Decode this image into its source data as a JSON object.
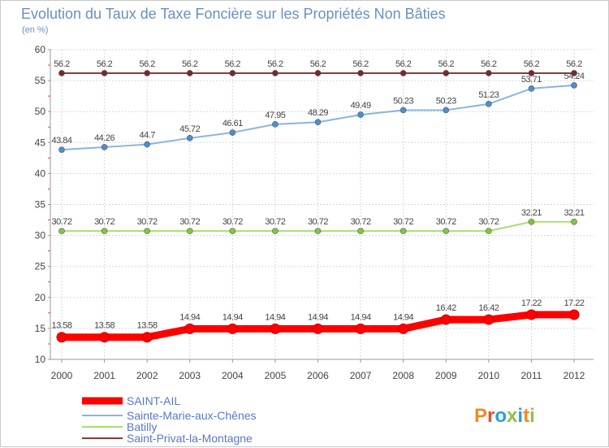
{
  "chart_data": {
    "type": "line",
    "title": "Evolution du Taux de Taxe Foncière sur les Propriétés Non Bâties",
    "subtitle": "(en %)",
    "x": [
      "2000",
      "2001",
      "2002",
      "2003",
      "2004",
      "2005",
      "2006",
      "2007",
      "2008",
      "2009",
      "2010",
      "2011",
      "2012"
    ],
    "ylim": [
      10,
      60
    ],
    "yticks": [
      "10",
      "15",
      "20",
      "25",
      "30",
      "35",
      "40",
      "45",
      "50",
      "55",
      "60"
    ],
    "grid": true,
    "legend_position": "bottom-left",
    "series": [
      {
        "name": "SAINT-AIL",
        "color": "#ff0000",
        "marker_color": "#ff0000",
        "values": [
          13.58,
          13.58,
          13.58,
          14.94,
          14.94,
          14.94,
          14.94,
          14.94,
          14.94,
          16.42,
          16.42,
          17.22,
          17.22
        ],
        "labels": [
          "13.58",
          "13.58",
          "13.58",
          "14.94",
          "14.94",
          "14.94",
          "14.94",
          "14.94",
          "14.94",
          "16.42",
          "16.42",
          "17.22",
          "17.22"
        ]
      },
      {
        "name": "Sainte-Marie-aux-Chênes",
        "color": "#8bb4e0",
        "marker_color": "#4a90d0",
        "values": [
          43.84,
          44.26,
          44.7,
          45.72,
          46.61,
          47.95,
          48.29,
          49.49,
          50.23,
          50.23,
          51.23,
          53.71,
          54.24
        ],
        "labels": [
          "43.84",
          "44.26",
          "44.7",
          "45.72",
          "46.61",
          "47.95",
          "48.29",
          "49.49",
          "50.23",
          "50.23",
          "51.23",
          "53.71",
          "54.24"
        ]
      },
      {
        "name": "Batilly",
        "color": "#a8e070",
        "marker_color": "#80c840",
        "values": [
          30.72,
          30.72,
          30.72,
          30.72,
          30.72,
          30.72,
          30.72,
          30.72,
          30.72,
          30.72,
          30.72,
          32.21,
          32.21
        ],
        "labels": [
          "30.72",
          "30.72",
          "30.72",
          "30.72",
          "30.72",
          "30.72",
          "30.72",
          "30.72",
          "30.72",
          "30.72",
          "30.72",
          "32.21",
          "32.21"
        ]
      },
      {
        "name": "Saint-Privat-la-Montagne",
        "color": "#8b3a3a",
        "marker_color": "#7a2828",
        "values": [
          56.2,
          56.2,
          56.2,
          56.2,
          56.2,
          56.2,
          56.2,
          56.2,
          56.2,
          56.2,
          56.2,
          56.2,
          56.2
        ],
        "labels": [
          "56.2",
          "56.2",
          "56.2",
          "56.2",
          "56.2",
          "56.2",
          "56.2",
          "56.2",
          "56.2",
          "56.2",
          "56.2",
          "56.2",
          "56.2"
        ]
      }
    ]
  },
  "logo": {
    "text": "Proxiti"
  }
}
